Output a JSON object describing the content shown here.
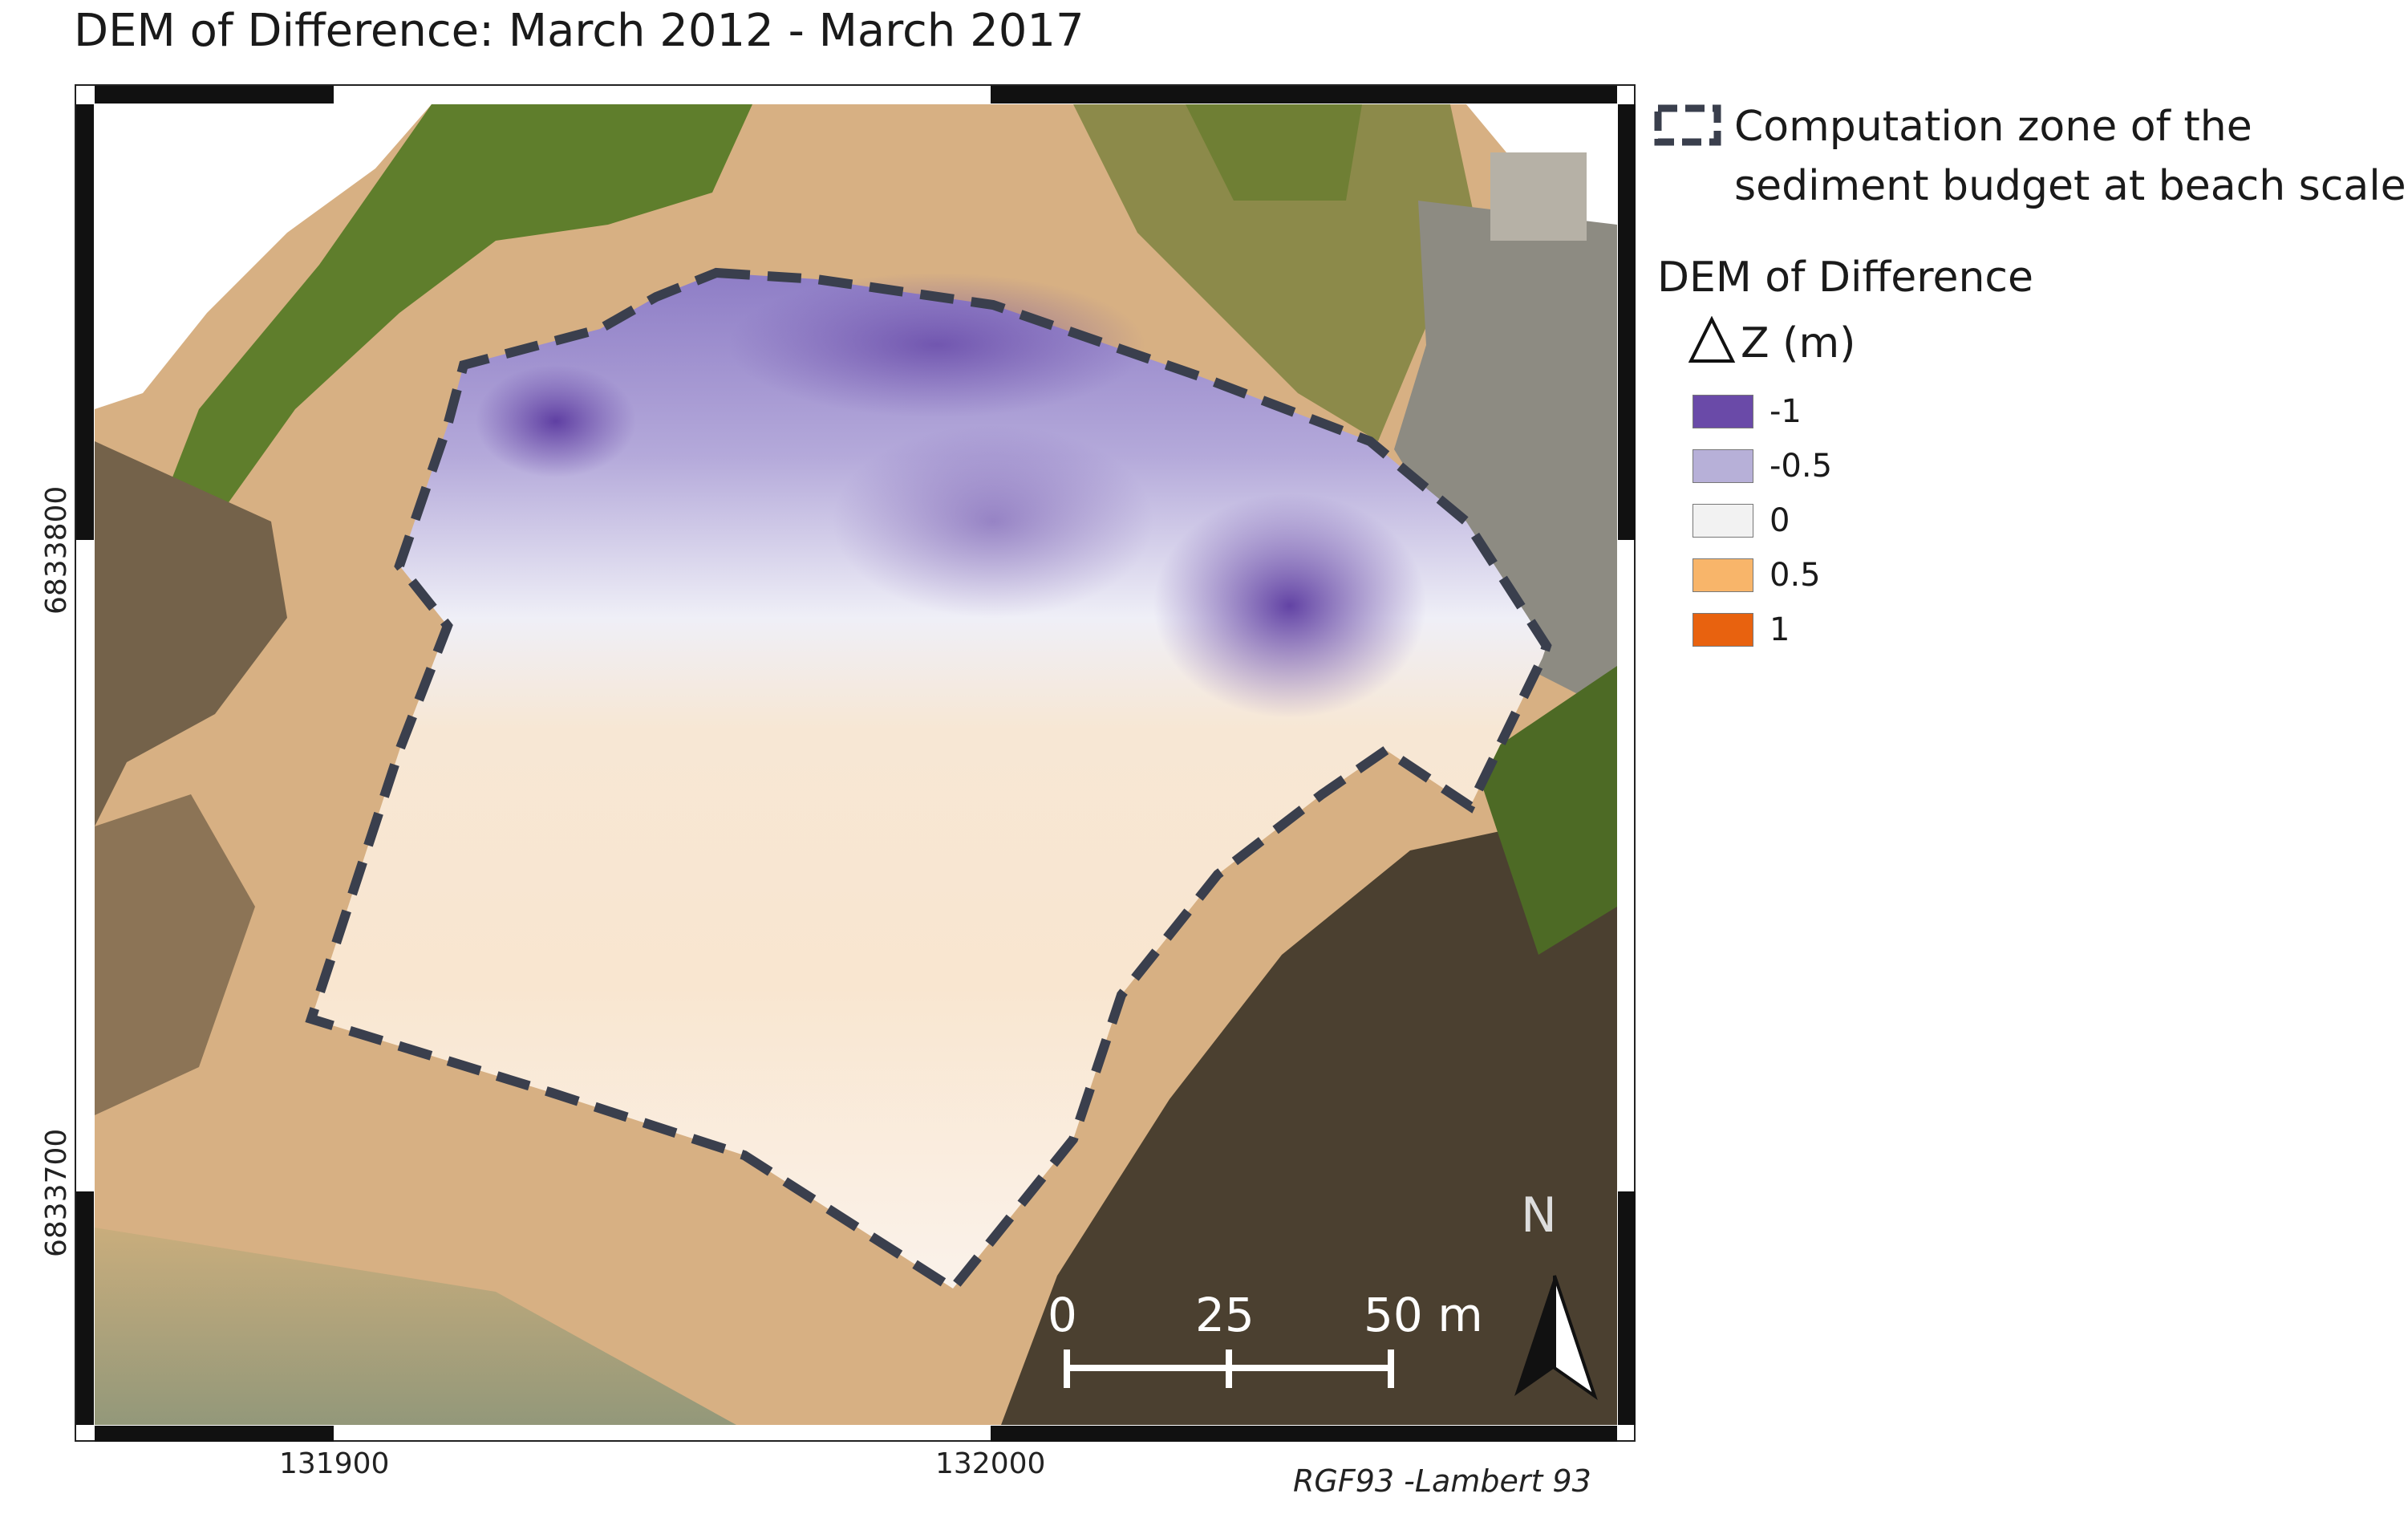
{
  "title": "DEM of Difference: March 2012 - March 2017",
  "legend": {
    "zone_line1": "Computation zone of the",
    "zone_line2": "sediment budget at beach scale",
    "dod_title": "DEM of Difference",
    "dz_label": "Z (m)",
    "classes": [
      {
        "label": "-1",
        "color": "#6a4aa8"
      },
      {
        "label": "-0.5",
        "color": "#b7b0d8"
      },
      {
        "label": "0",
        "color": "#f2f2f2"
      },
      {
        "label": "0.5",
        "color": "#f8b56a"
      },
      {
        "label": "1",
        "color": "#e8620f"
      }
    ]
  },
  "axes": {
    "y_top": "6833800",
    "y_bottom": "6833700",
    "x_left": "131900",
    "x_right": "132000"
  },
  "crs": "RGF93 -Lambert 93",
  "scalebar": {
    "labels": [
      "0",
      "25",
      "50 m"
    ]
  },
  "north_arrow": {
    "label": "N"
  },
  "colors": {
    "zone_outline": "#3a3f4d",
    "sand": "#d8b284",
    "rock": "#4d4232",
    "vegetation": "#5c7a2b"
  }
}
